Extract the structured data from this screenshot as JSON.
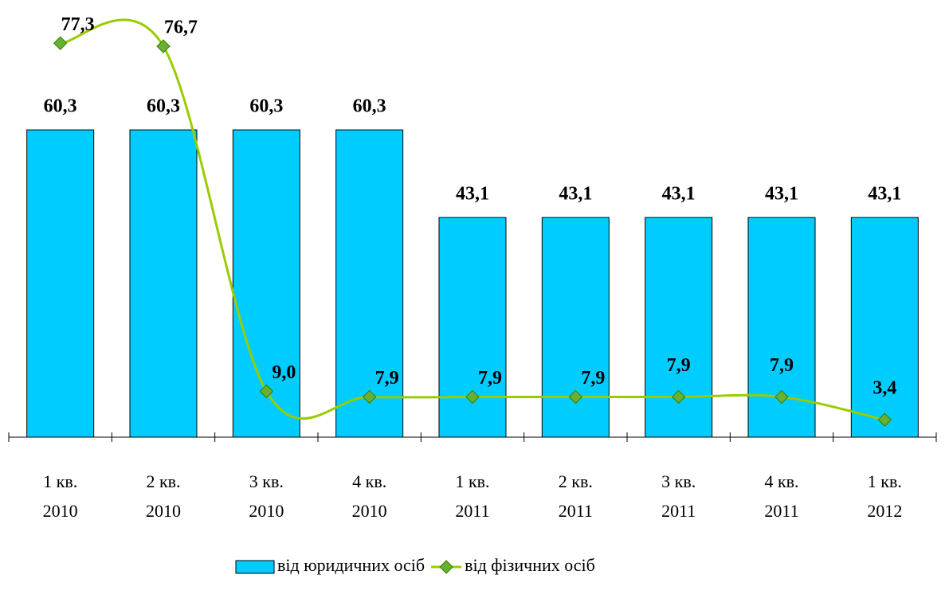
{
  "chart_data": {
    "type": "bar_line",
    "categories": [
      [
        "1 кв.",
        "2010"
      ],
      [
        "2 кв.",
        "2010"
      ],
      [
        "3 кв.",
        "2010"
      ],
      [
        "4 кв.",
        "2010"
      ],
      [
        "1 кв.",
        "2011"
      ],
      [
        "2 кв.",
        "2011"
      ],
      [
        "3 кв.",
        "2011"
      ],
      [
        "4 кв.",
        "2011"
      ],
      [
        "1 кв.",
        "2012"
      ]
    ],
    "series": [
      {
        "name": "від юридичних осіб",
        "type": "bar",
        "color": "#00ccff",
        "values": [
          60.3,
          60.3,
          60.3,
          60.3,
          43.1,
          43.1,
          43.1,
          43.1,
          43.1
        ],
        "value_labels": [
          "60,3",
          "60,3",
          "60,3",
          "60,3",
          "43,1",
          "43,1",
          "43,1",
          "43,1",
          "43,1"
        ]
      },
      {
        "name": "від фізичних осіб",
        "type": "line",
        "color": "#99cc00",
        "marker_color": "#66b032",
        "values": [
          77.3,
          76.7,
          9.0,
          7.9,
          7.9,
          7.9,
          7.9,
          7.9,
          3.4
        ],
        "value_labels": [
          "77,3",
          "76,7",
          "9,0",
          "7,9",
          "7,9",
          "7,9",
          "7,9",
          "7,9",
          "3,4"
        ]
      }
    ],
    "ylim": [
      0,
      85
    ],
    "legend": "bottom"
  }
}
